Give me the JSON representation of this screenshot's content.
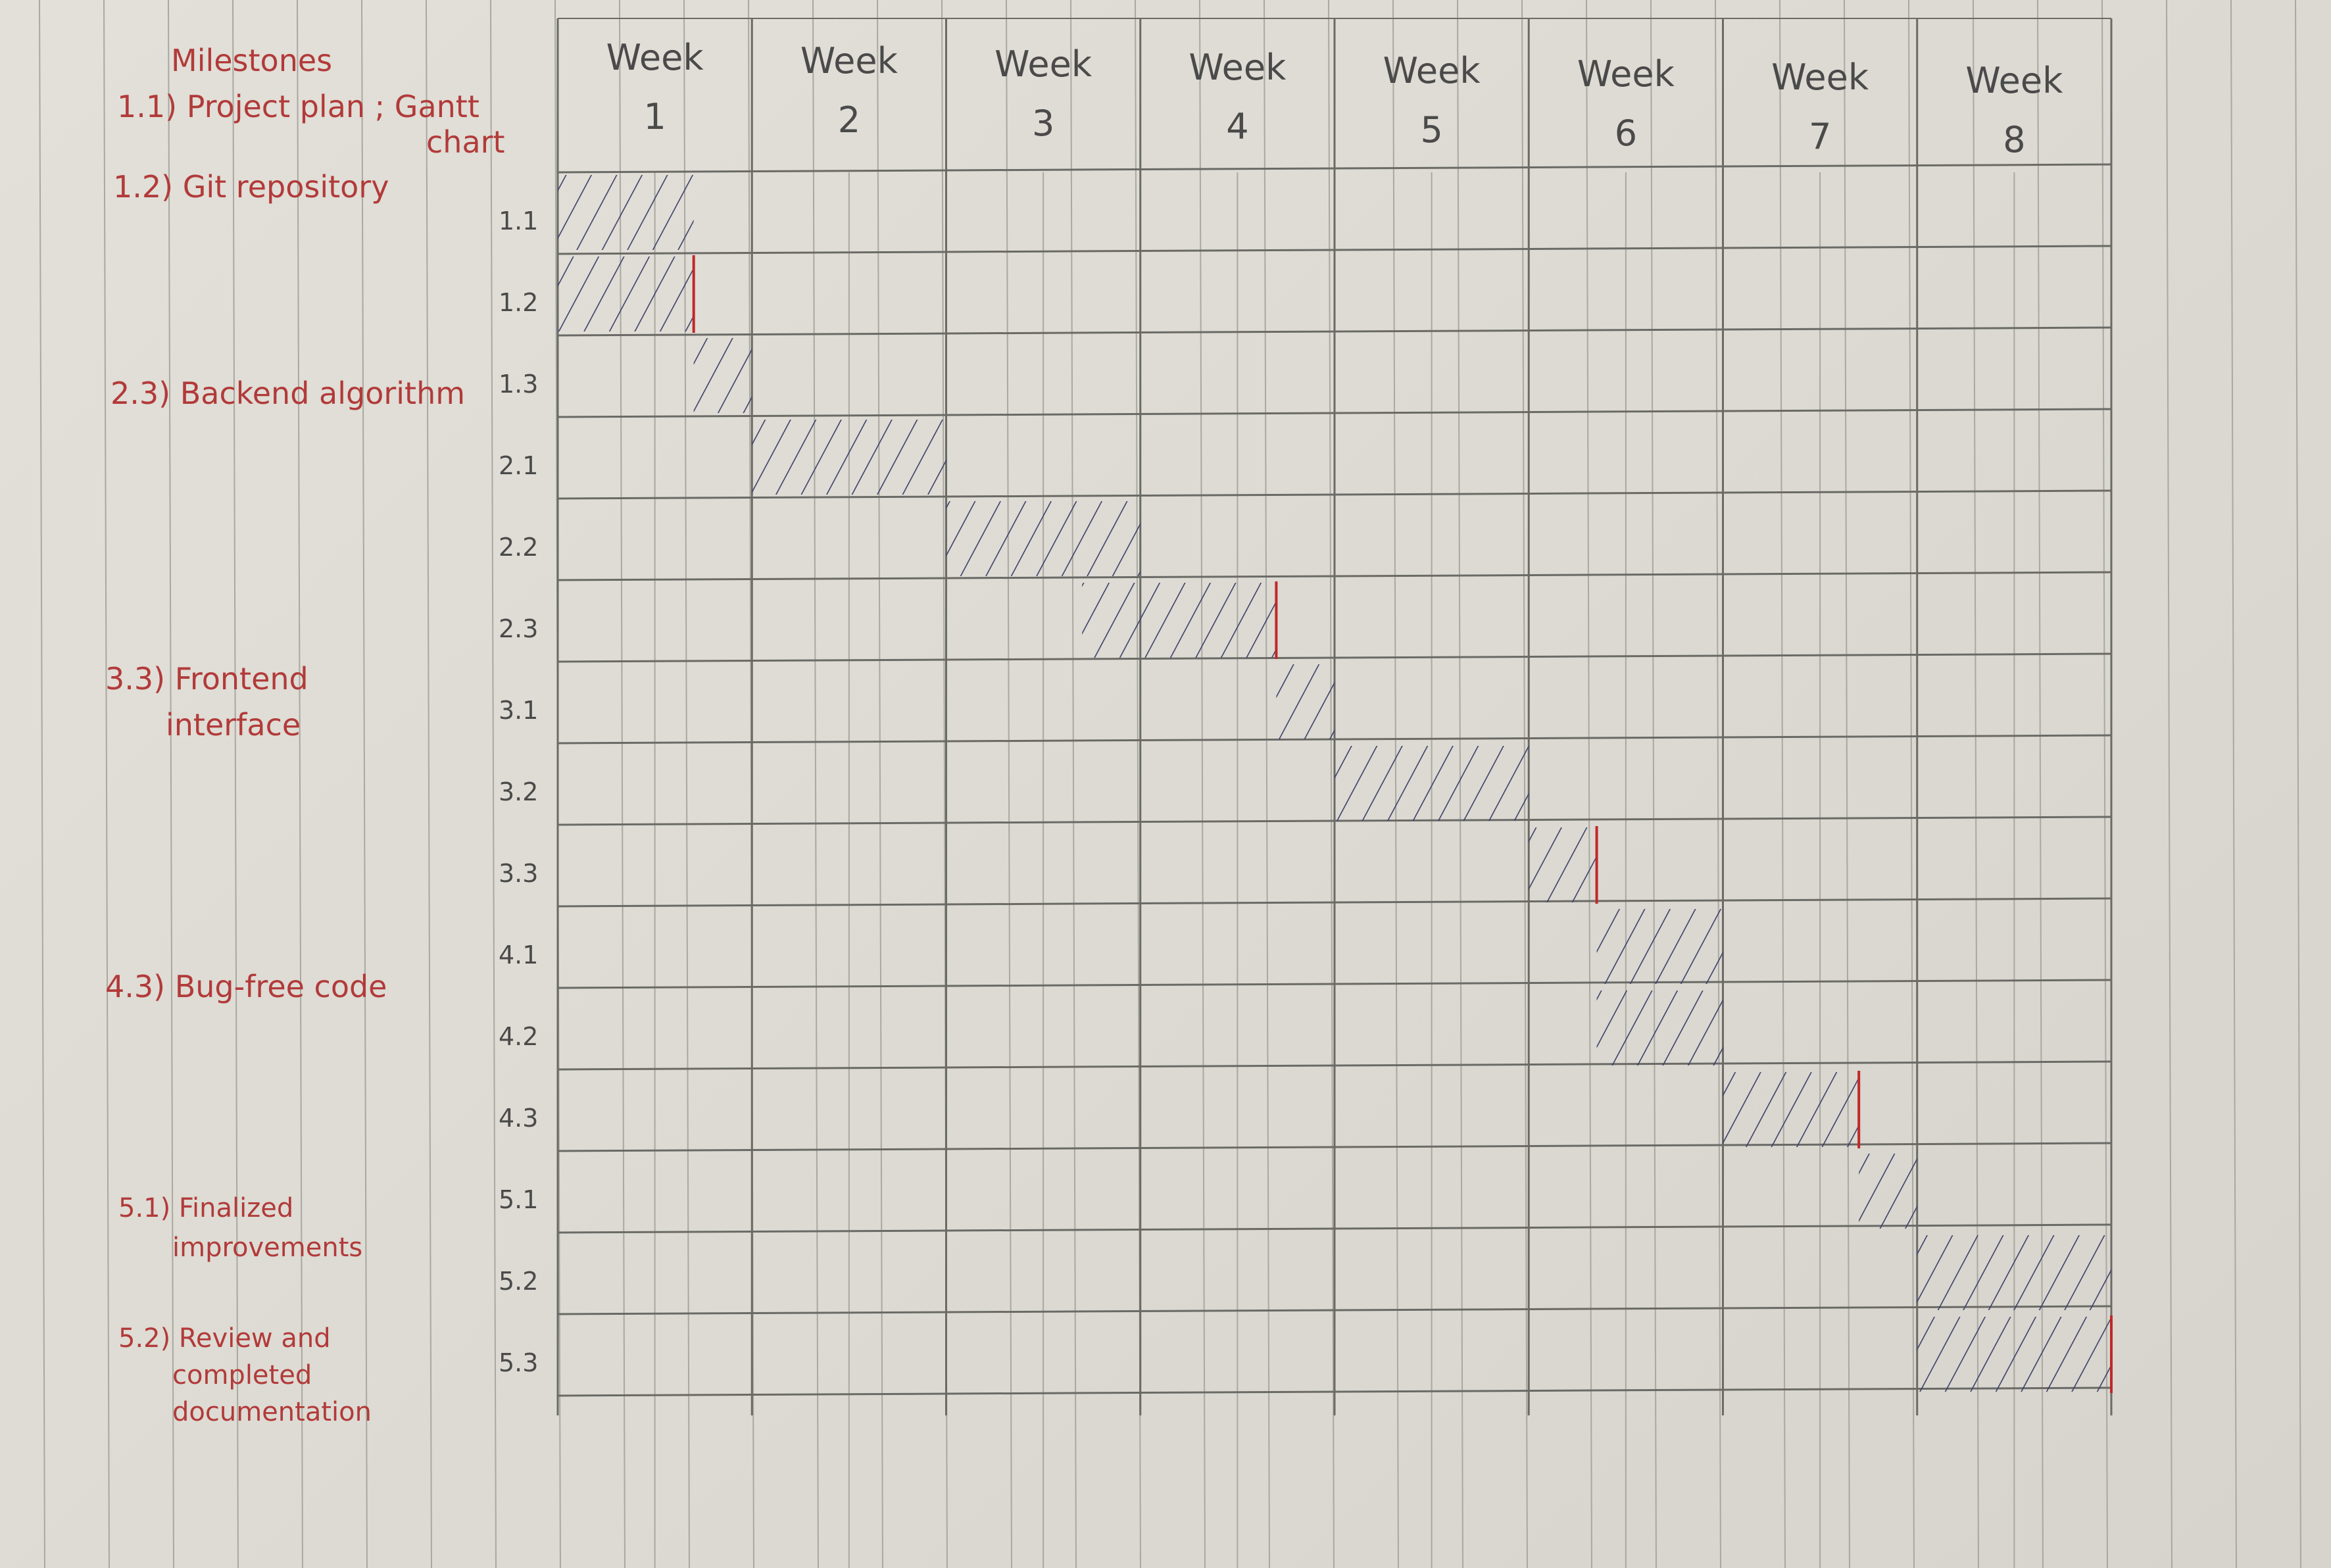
{
  "chart_data": {
    "type": "gantt",
    "milestones_heading": "Milestones",
    "milestones": [
      {
        "label": "1.1) Project plan ; Gantt chart",
        "lines": [
          "1.1) Project plan ; Gantt",
          "chart"
        ]
      },
      {
        "label": "1.2) Git repository",
        "lines": [
          "1.2) Git repository"
        ]
      },
      {
        "label": "2.3) Backend algorithm",
        "lines": [
          "2.3) Backend algorithm"
        ]
      },
      {
        "label": "3.3) Frontend interface",
        "lines": [
          "3.3) Frontend",
          "interface"
        ]
      },
      {
        "label": "4.3) Bug-free code",
        "lines": [
          "4.3) Bug-free code"
        ]
      },
      {
        "label": "5.1) Finalized improvements",
        "lines": [
          "5.1) Finalized",
          "improvements"
        ]
      },
      {
        "label": "5.2) Review and completed documentation",
        "lines": [
          "5.2) Review and",
          "completed",
          "documentation"
        ]
      }
    ],
    "week_word": "Week",
    "weeks": [
      "1",
      "2",
      "3",
      "4",
      "5",
      "6",
      "7",
      "8"
    ],
    "tasks": [
      {
        "id": "1.1",
        "start": 1,
        "end": 1.7,
        "milestone": false
      },
      {
        "id": "1.2",
        "start": 1,
        "end": 1.7,
        "milestone": true
      },
      {
        "id": "1.3",
        "start": 1.7,
        "end": 2,
        "milestone": false
      },
      {
        "id": "2.1",
        "start": 2,
        "end": 3,
        "milestone": false
      },
      {
        "id": "2.2",
        "start": 3,
        "end": 4,
        "milestone": false
      },
      {
        "id": "2.3",
        "start": 3.7,
        "end": 4.7,
        "milestone": true
      },
      {
        "id": "3.1",
        "start": 4.7,
        "end": 5,
        "milestone": false
      },
      {
        "id": "3.2",
        "start": 5,
        "end": 6,
        "milestone": false
      },
      {
        "id": "3.3",
        "start": 6,
        "end": 6.35,
        "milestone": true
      },
      {
        "id": "4.1",
        "start": 6.35,
        "end": 7,
        "milestone": false
      },
      {
        "id": "4.2",
        "start": 6.35,
        "end": 7,
        "milestone": false
      },
      {
        "id": "4.3",
        "start": 7,
        "end": 7.7,
        "milestone": true
      },
      {
        "id": "5.1",
        "start": 7.7,
        "end": 8,
        "milestone": false
      },
      {
        "id": "5.2",
        "start": 8,
        "end": 9,
        "milestone": false
      },
      {
        "id": "5.3",
        "start": 8,
        "end": 9,
        "milestone": true
      }
    ],
    "colors": {
      "milestone_text": "#b23a3a",
      "milestone_line": "#c0282a",
      "hatch": "#3c3f6a",
      "grid_major": "#6a6a66",
      "grid_minor": "#a9a8a1",
      "pencil_text": "#4a4a4a"
    }
  }
}
